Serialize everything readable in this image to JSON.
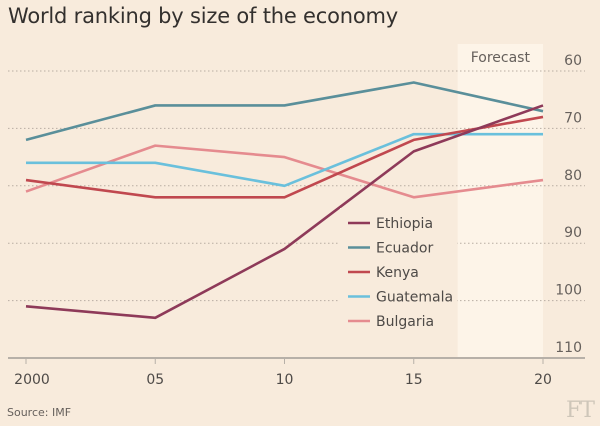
{
  "chart_data": {
    "type": "line",
    "title": "World ranking by size of the economy",
    "xlabel": "",
    "ylabel": "",
    "x": [
      2000,
      2005,
      2010,
      2015,
      2020
    ],
    "x_tick_labels": [
      "2000",
      "05",
      "10",
      "15",
      "20"
    ],
    "y_tick_values": [
      60,
      70,
      80,
      90,
      100,
      110
    ],
    "y_tick_labels": [
      "60",
      "70",
      "80",
      "90",
      "100",
      "110"
    ],
    "ylim": [
      110,
      60
    ],
    "y_inverted": true,
    "xlim": [
      2000,
      2020
    ],
    "grid": "horizontal dotted",
    "forecast": {
      "label": "Forecast",
      "from": 2016.7,
      "to": 2020
    },
    "legend_position": "center-bottom",
    "series": [
      {
        "name": "Ethiopia",
        "color": "#8e3a59",
        "values": [
          101,
          103,
          91,
          74,
          66
        ]
      },
      {
        "name": "Ecuador",
        "color": "#5a8f9a",
        "values": [
          72,
          66,
          66,
          62,
          67
        ]
      },
      {
        "name": "Kenya",
        "color": "#c0484f",
        "values": [
          79,
          82,
          82,
          72,
          68
        ]
      },
      {
        "name": "Guatemala",
        "color": "#6ac0dc",
        "values": [
          76,
          76,
          80,
          71,
          71
        ]
      },
      {
        "name": "Bulgaria",
        "color": "#e58b8f",
        "values": [
          81,
          73,
          75,
          82,
          79
        ]
      }
    ]
  },
  "source": "Source: IMF",
  "logo": "FT"
}
